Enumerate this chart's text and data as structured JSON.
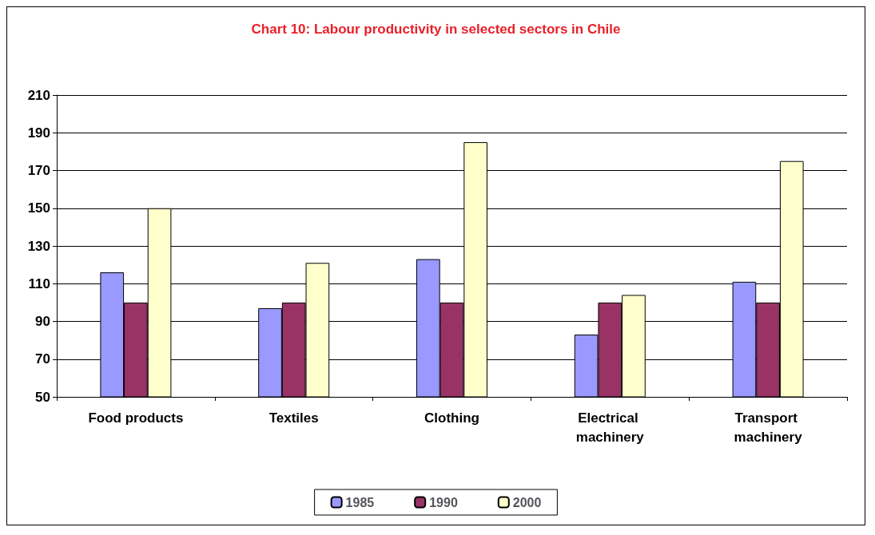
{
  "chart_data": {
    "type": "bar",
    "title": "Chart 10: Labour productivity in selected sectors in Chile",
    "categories": [
      "Food products",
      "Textiles",
      "Clothing",
      "Electrical machinery",
      "Transport machinery"
    ],
    "series": [
      {
        "name": "1985",
        "color": "#9999ff",
        "values": [
          116,
          97,
          123,
          83,
          111
        ]
      },
      {
        "name": "1990",
        "color": "#993366",
        "values": [
          100,
          100,
          100,
          100,
          100
        ]
      },
      {
        "name": "2000",
        "color": "#ffffcc",
        "values": [
          150,
          121,
          185,
          104,
          175
        ]
      }
    ],
    "ylim": [
      50,
      210
    ],
    "yticks": [
      50,
      70,
      90,
      110,
      130,
      150,
      170,
      190,
      210
    ],
    "grid": "y",
    "legend": "bottom"
  }
}
